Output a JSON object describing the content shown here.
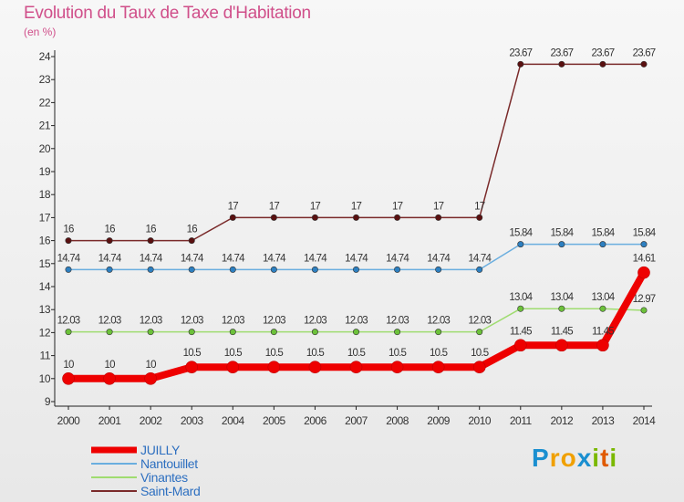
{
  "title": "Evolution du Taux de Taxe d'Habitation",
  "subtitle": "(en %)",
  "logo": {
    "text": "Proxiti",
    "letters": [
      "P",
      "r",
      "o",
      "x",
      "i",
      "t",
      "i"
    ],
    "colors": [
      "#1a8fd0",
      "#f0a000",
      "#f0a000",
      "#1a8fd0",
      "#7ab800",
      "#e05a00",
      "#7ab800"
    ]
  },
  "chart_data": {
    "type": "line",
    "x": [
      "2000",
      "2001",
      "2002",
      "2003",
      "2004",
      "2005",
      "2006",
      "2007",
      "2008",
      "2009",
      "2010",
      "2011",
      "2012",
      "2013",
      "2014"
    ],
    "ylim": [
      9,
      24
    ],
    "yticks": [
      9,
      10,
      11,
      12,
      13,
      14,
      15,
      16,
      17,
      18,
      19,
      20,
      21,
      22,
      23,
      24
    ],
    "grid": false,
    "legend": "bottom-left",
    "series": [
      {
        "name": "Saint-Mard",
        "color": "#7a2a2a",
        "marker": "#5a1010",
        "width": 1.5,
        "values": [
          16,
          16,
          16,
          16,
          17,
          17,
          17,
          17,
          17,
          17,
          17,
          23.67,
          23.67,
          23.67,
          23.67
        ],
        "labels": [
          "16",
          "16",
          "16",
          "16",
          "17",
          "17",
          "17",
          "17",
          "17",
          "17",
          "17",
          "23.67",
          "23.67",
          "23.67",
          "23.67"
        ]
      },
      {
        "name": "Nantouillet",
        "color": "#6aaedf",
        "marker": "#2d7fc0",
        "width": 1.5,
        "values": [
          14.74,
          14.74,
          14.74,
          14.74,
          14.74,
          14.74,
          14.74,
          14.74,
          14.74,
          14.74,
          14.74,
          15.84,
          15.84,
          15.84,
          15.84
        ],
        "labels": [
          "14.74",
          "14.74",
          "14.74",
          "14.74",
          "14.74",
          "14.74",
          "14.74",
          "14.74",
          "14.74",
          "14.74",
          "14.74",
          "15.84",
          "15.84",
          "15.84",
          "15.84"
        ]
      },
      {
        "name": "Vinantes",
        "color": "#9fdc70",
        "marker": "#6cc13a",
        "width": 1.5,
        "values": [
          12.03,
          12.03,
          12.03,
          12.03,
          12.03,
          12.03,
          12.03,
          12.03,
          12.03,
          12.03,
          12.03,
          13.04,
          13.04,
          13.04,
          12.97
        ],
        "labels": [
          "12.03",
          "12.03",
          "12.03",
          "12.03",
          "12.03",
          "12.03",
          "12.03",
          "12.03",
          "12.03",
          "12.03",
          "12.03",
          "13.04",
          "13.04",
          "13.04",
          "12.97"
        ]
      },
      {
        "name": "JUILLY",
        "color": "#ee0000",
        "marker": "#ee0000",
        "width": 8,
        "values": [
          10,
          10,
          10,
          10.5,
          10.5,
          10.5,
          10.5,
          10.5,
          10.5,
          10.5,
          10.5,
          11.45,
          11.45,
          11.45,
          14.61
        ],
        "labels": [
          "10",
          "10",
          "10",
          "10.5",
          "10.5",
          "10.5",
          "10.5",
          "10.5",
          "10.5",
          "10.5",
          "10.5",
          "11.45",
          "11.45",
          "11.45",
          "14.61"
        ]
      }
    ],
    "legend_order": [
      "JUILLY",
      "Nantouillet",
      "Vinantes",
      "Saint-Mard"
    ]
  }
}
